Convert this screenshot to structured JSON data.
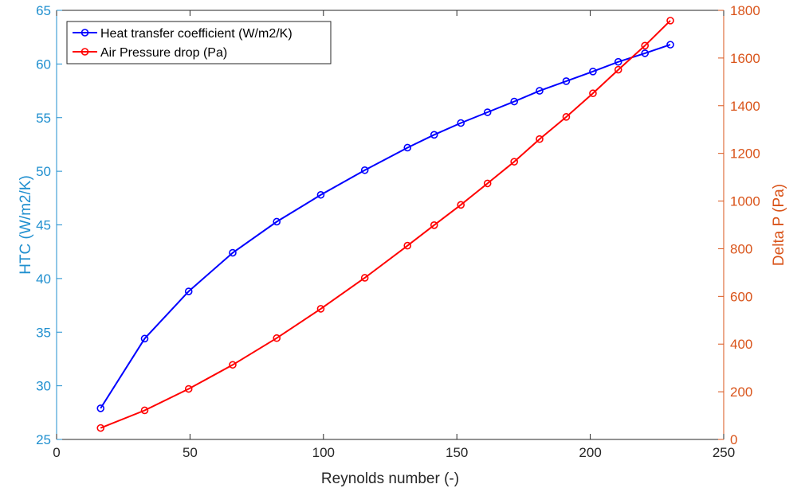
{
  "chart_data": {
    "type": "line",
    "xlabel": "Reynolds number (-)",
    "ylabel_left": "HTC (W/m2/K)",
    "ylabel_right": "Delta P (Pa)",
    "xlim": [
      0,
      250
    ],
    "ylim_left": [
      25,
      65
    ],
    "ylim_right": [
      0,
      1800
    ],
    "x_ticks": [
      0,
      50,
      100,
      150,
      200,
      250
    ],
    "y_ticks_left": [
      25,
      30,
      35,
      40,
      45,
      50,
      55,
      60,
      65
    ],
    "y_ticks_right": [
      0,
      200,
      400,
      600,
      800,
      1000,
      1200,
      1400,
      1600,
      1800
    ],
    "grid": false,
    "legend_position": "top-left",
    "series": [
      {
        "name": "Heat transfer coefficient (W/m2/K)",
        "axis": "left",
        "color": "#0000ff",
        "marker": "circle",
        "x": [
          16.5,
          33,
          49.5,
          66,
          82.5,
          99,
          115.5,
          131.5,
          141.5,
          151.5,
          161.5,
          171.5,
          181,
          191,
          201,
          210.5,
          220.5,
          230
        ],
        "y": [
          27.9,
          34.4,
          38.8,
          42.4,
          45.3,
          47.8,
          50.1,
          52.2,
          53.4,
          54.5,
          55.5,
          56.5,
          57.5,
          58.4,
          59.3,
          60.2,
          61.0,
          61.8
        ]
      },
      {
        "name": "Air Pressure drop (Pa)",
        "axis": "right",
        "color": "#ff0000",
        "marker": "circle",
        "x": [
          16.5,
          33,
          49.5,
          66,
          82.5,
          99,
          115.5,
          131.5,
          141.5,
          151.5,
          161.5,
          171.5,
          181,
          191,
          201,
          210.5,
          220.5,
          230
        ],
        "y": [
          48,
          122,
          212,
          313,
          425,
          548,
          678,
          813,
          899,
          984,
          1074,
          1165,
          1260,
          1353,
          1452,
          1551,
          1652,
          1757
        ]
      }
    ]
  },
  "colors": {
    "left_axis": "#1f8fcf",
    "right_axis": "#d95319",
    "bottom_axis": "#262626"
  }
}
